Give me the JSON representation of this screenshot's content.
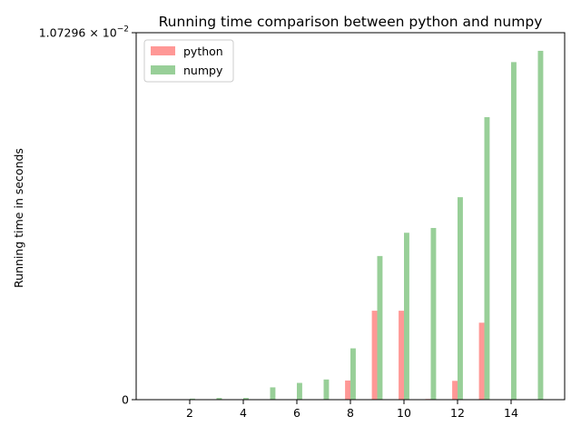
{
  "chart_data": {
    "type": "bar",
    "title": "Running time comparison between python and numpy",
    "xlabel": "",
    "ylabel": "Running time in seconds",
    "x": [
      1,
      2,
      3,
      4,
      5,
      6,
      7,
      8,
      9,
      10,
      11,
      12,
      13,
      14,
      15
    ],
    "xticks": [
      2,
      4,
      6,
      8,
      10,
      12,
      14
    ],
    "xticklabels": [
      "2",
      "4",
      "6",
      "8",
      "10",
      "12",
      "14"
    ],
    "xlim": [
      0,
      16
    ],
    "ylim": [
      0,
      0.0107296
    ],
    "yticks": [
      {
        "value": 0,
        "label": "0"
      },
      {
        "value": 0.0107296,
        "label_base": "1.07296 × 10",
        "label_exp": "−2"
      }
    ],
    "series": [
      {
        "name": "python",
        "color": "#ff9896",
        "offset": -0.1,
        "values": [
          0,
          0,
          0,
          0,
          0,
          0,
          0,
          0.00056,
          0.0026,
          0.0026,
          2e-05,
          0.00055,
          0.00225,
          0,
          0
        ]
      },
      {
        "name": "numpy",
        "color": "#98cf98",
        "offset": 0.1,
        "values": [
          0,
          3e-05,
          5e-05,
          5e-05,
          0.00036,
          0.00049,
          0.00059,
          0.0015,
          0.0042,
          0.00488,
          0.00502,
          0.00592,
          0.00826,
          0.00987,
          0.0102
        ]
      }
    ],
    "grid": false,
    "legend_position": "top-left"
  }
}
